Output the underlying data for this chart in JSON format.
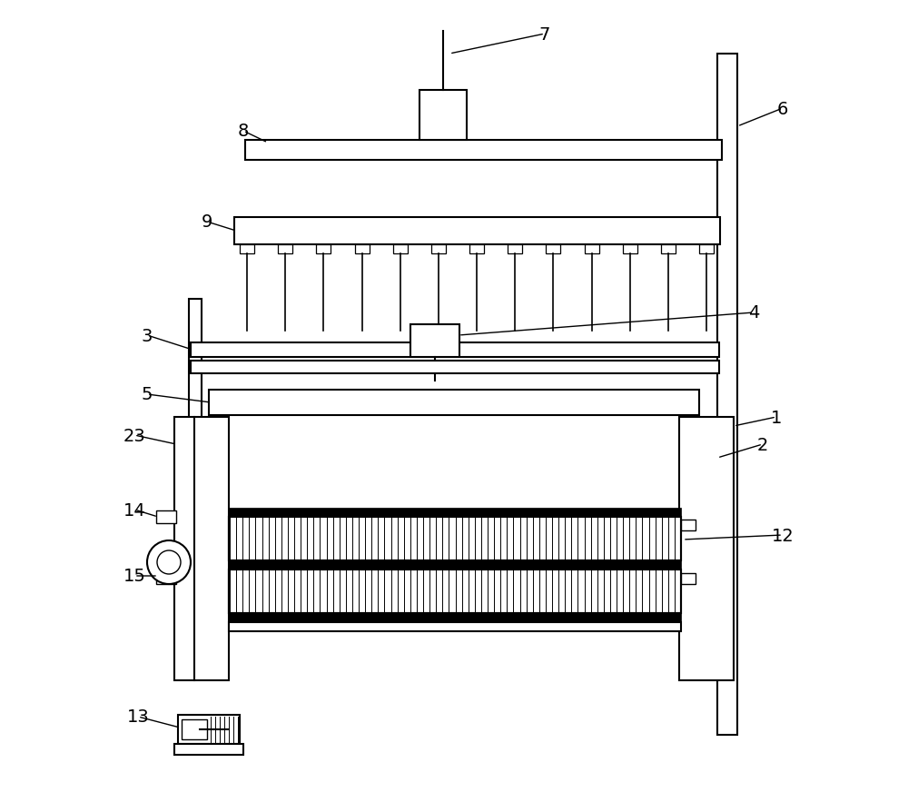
{
  "bg_color": "#ffffff",
  "line_color": "#000000",
  "figsize": [
    10.0,
    8.95
  ],
  "dpi": 100
}
